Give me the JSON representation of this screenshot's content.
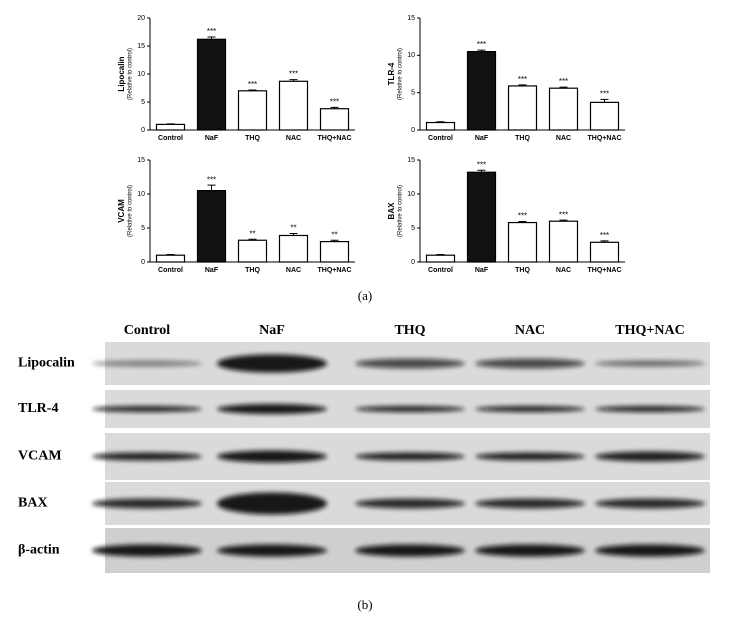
{
  "chart_data": [
    {
      "type": "bar",
      "ylabel": "Lipocalin",
      "ylabel_note": "(Relative to control)",
      "categories": [
        "Control",
        "NaF",
        "THQ",
        "NAC",
        "THQ+NAC"
      ],
      "values": [
        1,
        16.2,
        7,
        8.7,
        3.8
      ],
      "errors": [
        0.1,
        0.4,
        0.15,
        0.3,
        0.25
      ],
      "annotations": [
        null,
        "***",
        "***",
        "***",
        "***"
      ],
      "colors": [
        "#ffffff",
        "#111111",
        "#ffffff",
        "#ffffff",
        "#ffffff"
      ],
      "ylim": [
        0,
        20
      ],
      "yticks": [
        0,
        5,
        10,
        15,
        20
      ]
    },
    {
      "type": "bar",
      "ylabel": "TLR-4",
      "ylabel_note": "(Relative to control)",
      "categories": [
        "Control",
        "NaF",
        "THQ",
        "NAC",
        "THQ+NAC"
      ],
      "values": [
        1,
        10.5,
        5.9,
        5.6,
        3.7
      ],
      "errors": [
        0.1,
        0.2,
        0.15,
        0.15,
        0.4
      ],
      "annotations": [
        null,
        "***",
        "***",
        "***",
        "***"
      ],
      "colors": [
        "#ffffff",
        "#111111",
        "#ffffff",
        "#ffffff",
        "#ffffff"
      ],
      "ylim": [
        0,
        15
      ],
      "yticks": [
        0,
        5,
        10,
        15
      ]
    },
    {
      "type": "bar",
      "ylabel": "VCAM",
      "ylabel_note": "(Relative to control)",
      "categories": [
        "Control",
        "NaF",
        "THQ",
        "NAC",
        "THQ+NAC"
      ],
      "values": [
        1,
        10.5,
        3.2,
        3.9,
        3.0
      ],
      "errors": [
        0.1,
        0.8,
        0.15,
        0.3,
        0.2
      ],
      "annotations": [
        null,
        "***",
        "**",
        "**",
        "**"
      ],
      "colors": [
        "#ffffff",
        "#111111",
        "#ffffff",
        "#ffffff",
        "#ffffff"
      ],
      "ylim": [
        0,
        15
      ],
      "yticks": [
        0,
        5,
        10,
        15
      ]
    },
    {
      "type": "bar",
      "ylabel": "BAX",
      "ylabel_note": "(Relative to control)",
      "categories": [
        "Control",
        "NaF",
        "THQ",
        "NAC",
        "THQ+NAC"
      ],
      "values": [
        1,
        13.2,
        5.8,
        6.0,
        2.9
      ],
      "errors": [
        0.1,
        0.3,
        0.15,
        0.15,
        0.2
      ],
      "annotations": [
        null,
        "***",
        "***",
        "***",
        "***"
      ],
      "colors": [
        "#ffffff",
        "#111111",
        "#ffffff",
        "#ffffff",
        "#ffffff"
      ],
      "ylim": [
        0,
        15
      ],
      "yticks": [
        0,
        5,
        10,
        15
      ]
    }
  ],
  "figure": {
    "panel_a": "(a)",
    "panel_b": "(b)"
  },
  "blot": {
    "columns": [
      "Control",
      "NaF",
      "THQ",
      "NAC",
      "THQ+NAC"
    ],
    "rows": [
      "Lipocalin",
      "TLR-4",
      "VCAM",
      "BAX",
      "β-actin"
    ]
  }
}
